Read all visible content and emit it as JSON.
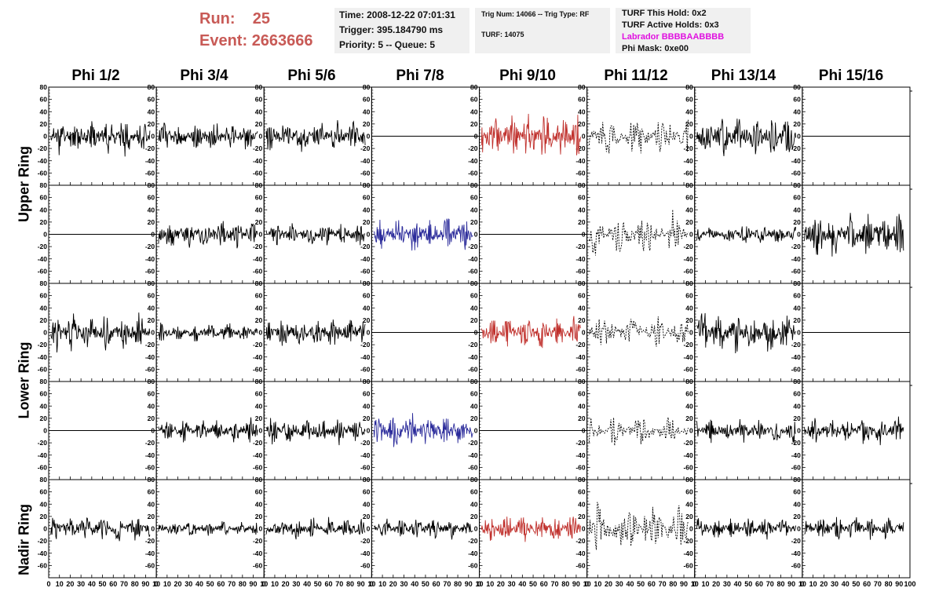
{
  "header": {
    "run_label": "Run:",
    "run_value": "25",
    "event_label": "Event:",
    "event_value": "2663666",
    "time": "Time: 2008-12-22 07:01:31",
    "trigger": "Trigger: 395.184790 ms",
    "priority": "Priority: 5 -- Queue: 5",
    "trig_num": "Trig Num: 14066 -- Trig Type: RF",
    "turf": "TURF: 14075",
    "turf_this_hold": "TURF This Hold: 0x2",
    "turf_active_holds": "TURF Active Holds: 0x3",
    "labrador": "Labrador BBBBAABBBB",
    "phi_mask": "Phi Mask: 0xe00"
  },
  "chart_data": {
    "type": "line",
    "columns": [
      "Phi 1/2",
      "Phi 3/4",
      "Phi 5/6",
      "Phi 7/8",
      "Phi 9/10",
      "Phi 11/12",
      "Phi 13/14",
      "Phi 15/16"
    ],
    "rows": [
      "Upper Ring",
      "Lower Ring",
      "Nadir Ring"
    ],
    "xlim": [
      0,
      100
    ],
    "ylim": [
      -80,
      80
    ],
    "x_ticks": [
      0,
      10,
      20,
      30,
      40,
      50,
      60,
      70,
      80,
      90,
      100
    ],
    "x_tick_labels_first": [
      "0",
      "10",
      "20",
      "30",
      "40",
      "50",
      "60",
      "70",
      "80",
      "90",
      "10"
    ],
    "x_tick_labels_last": [
      "0",
      "10",
      "20",
      "30",
      "40",
      "50",
      "60",
      "70",
      "80",
      "90",
      "100"
    ],
    "y_ticks": [
      -80,
      -60,
      -40,
      -20,
      0,
      20,
      40,
      60,
      80
    ],
    "y_tick_labels": [
      "",
      "-60",
      "-40",
      "-20",
      "0",
      "20",
      "40",
      "60",
      "80"
    ],
    "colors": {
      "black": "#000000",
      "red": "#c0302c",
      "blue": "#2a2a9a"
    },
    "panels": [
      {
        "row": 0,
        "col": 0,
        "style": "noise",
        "amp": 26,
        "color": "black",
        "seed": 11
      },
      {
        "row": 0,
        "col": 1,
        "style": "noise",
        "amp": 22,
        "color": "black",
        "seed": 12
      },
      {
        "row": 0,
        "col": 2,
        "style": "noise",
        "amp": 24,
        "color": "black",
        "seed": 13
      },
      {
        "row": 0,
        "col": 3,
        "style": "flat",
        "color": "black"
      },
      {
        "row": 0,
        "col": 4,
        "style": "noise",
        "amp": 34,
        "color": "red",
        "seed": 15
      },
      {
        "row": 0,
        "col": 5,
        "style": "dashed",
        "amp": 30,
        "color": "black",
        "seed": 16
      },
      {
        "row": 0,
        "col": 6,
        "style": "noise",
        "amp": 30,
        "color": "black",
        "seed": 17
      },
      {
        "row": 0,
        "col": 7,
        "style": "flat",
        "color": "black"
      },
      {
        "row": 1,
        "col": 0,
        "style": "flat",
        "color": "black"
      },
      {
        "row": 1,
        "col": 1,
        "style": "noise",
        "amp": 22,
        "color": "black",
        "seed": 22
      },
      {
        "row": 1,
        "col": 2,
        "style": "noise",
        "amp": 18,
        "color": "black",
        "seed": 23
      },
      {
        "row": 1,
        "col": 3,
        "style": "noise",
        "amp": 24,
        "color": "blue",
        "seed": 24
      },
      {
        "row": 1,
        "col": 4,
        "style": "flat",
        "color": "black"
      },
      {
        "row": 1,
        "col": 5,
        "style": "dashed",
        "amp": 32,
        "color": "black",
        "seed": 26
      },
      {
        "row": 1,
        "col": 6,
        "style": "noise",
        "amp": 14,
        "color": "black",
        "seed": 27
      },
      {
        "row": 1,
        "col": 7,
        "style": "noise",
        "amp": 34,
        "color": "black",
        "seed": 28
      },
      {
        "row": 2,
        "col": 0,
        "style": "noise",
        "amp": 28,
        "color": "black",
        "seed": 31
      },
      {
        "row": 2,
        "col": 1,
        "style": "noise",
        "amp": 14,
        "color": "black",
        "seed": 32
      },
      {
        "row": 2,
        "col": 2,
        "style": "noise",
        "amp": 22,
        "color": "black",
        "seed": 33
      },
      {
        "row": 2,
        "col": 3,
        "style": "flat",
        "color": "black"
      },
      {
        "row": 2,
        "col": 4,
        "style": "noise",
        "amp": 24,
        "color": "red",
        "seed": 35
      },
      {
        "row": 2,
        "col": 5,
        "style": "dashed",
        "amp": 24,
        "color": "black",
        "seed": 36
      },
      {
        "row": 2,
        "col": 6,
        "style": "noise",
        "amp": 32,
        "color": "black",
        "seed": 37
      },
      {
        "row": 2,
        "col": 7,
        "style": "flat",
        "color": "black"
      },
      {
        "row": 3,
        "col": 0,
        "style": "flat",
        "color": "black"
      },
      {
        "row": 3,
        "col": 1,
        "style": "noise",
        "amp": 18,
        "color": "black",
        "seed": 42
      },
      {
        "row": 3,
        "col": 2,
        "style": "noise",
        "amp": 20,
        "color": "black",
        "seed": 43
      },
      {
        "row": 3,
        "col": 3,
        "style": "noise",
        "amp": 26,
        "color": "blue",
        "seed": 44
      },
      {
        "row": 3,
        "col": 4,
        "style": "flat",
        "color": "black"
      },
      {
        "row": 3,
        "col": 5,
        "style": "dashed",
        "amp": 22,
        "color": "black",
        "seed": 46
      },
      {
        "row": 3,
        "col": 6,
        "style": "noise",
        "amp": 18,
        "color": "black",
        "seed": 47
      },
      {
        "row": 3,
        "col": 7,
        "style": "noise",
        "amp": 22,
        "color": "black",
        "seed": 48
      },
      {
        "row": 4,
        "col": 0,
        "style": "noise",
        "amp": 20,
        "color": "black",
        "seed": 51
      },
      {
        "row": 4,
        "col": 1,
        "style": "noise",
        "amp": 12,
        "color": "black",
        "seed": 52
      },
      {
        "row": 4,
        "col": 2,
        "style": "noise",
        "amp": 16,
        "color": "black",
        "seed": 53
      },
      {
        "row": 4,
        "col": 3,
        "style": "noise",
        "amp": 16,
        "color": "black",
        "seed": 54
      },
      {
        "row": 4,
        "col": 4,
        "style": "noise",
        "amp": 22,
        "color": "red",
        "seed": 55
      },
      {
        "row": 4,
        "col": 5,
        "style": "dashed",
        "amp": 36,
        "color": "black",
        "seed": 56
      },
      {
        "row": 4,
        "col": 6,
        "style": "noise",
        "amp": 16,
        "color": "black",
        "seed": 57
      },
      {
        "row": 4,
        "col": 7,
        "style": "noise",
        "amp": 18,
        "color": "black",
        "seed": 58
      }
    ]
  }
}
